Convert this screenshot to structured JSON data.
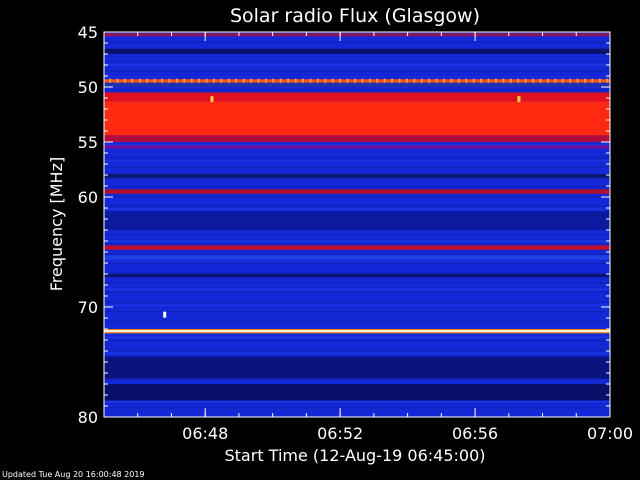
{
  "chart_data": {
    "type": "heatmap",
    "title": "Solar radio Flux (Glasgow)",
    "xlabel": "Start Time (12-Aug-19 06:45:00)",
    "ylabel": "Frequency [MHz]",
    "xlim": [
      "06:45:00",
      "07:00:00"
    ],
    "ylim": [
      45,
      80
    ],
    "y_inverted": true,
    "x_ticks": [
      "06:48",
      "06:52",
      "06:56",
      "07:00"
    ],
    "x_tick_values_min": [
      3,
      7,
      11,
      15
    ],
    "y_ticks": [
      45,
      50,
      55,
      60,
      70,
      80
    ],
    "background_color": "#1428d8",
    "colormap": [
      "#000010",
      "#1020c0",
      "#3060ff",
      "#c01030",
      "#ff3010",
      "#ffb020",
      "#ffffff"
    ],
    "bands": [
      {
        "freq_start": 45.1,
        "freq_end": 45.4,
        "color": "#8a1660"
      },
      {
        "freq_start": 46.5,
        "freq_end": 47.0,
        "color": "#0a1070"
      },
      {
        "freq_start": 49.3,
        "freq_end": 49.6,
        "color": "#ff5020"
      },
      {
        "freq_start": 49.6,
        "freq_end": 50.0,
        "color": "#2030b0"
      },
      {
        "freq_start": 50.5,
        "freq_end": 51.3,
        "color": "#e01020"
      },
      {
        "freq_start": 51.3,
        "freq_end": 54.4,
        "color": "#ff2a10"
      },
      {
        "freq_start": 54.4,
        "freq_end": 55.0,
        "color": "#b00c40"
      },
      {
        "freq_start": 55.3,
        "freq_end": 55.6,
        "color": "#7010a0"
      },
      {
        "freq_start": 57.9,
        "freq_end": 58.3,
        "color": "#0a1870"
      },
      {
        "freq_start": 59.3,
        "freq_end": 59.7,
        "color": "#b0102a"
      },
      {
        "freq_start": 61.3,
        "freq_end": 63.0,
        "color": "#0c1aa0"
      },
      {
        "freq_start": 64.4,
        "freq_end": 64.8,
        "color": "#c01030"
      },
      {
        "freq_start": 65.3,
        "freq_end": 65.7,
        "color": "#2040e0"
      },
      {
        "freq_start": 67.0,
        "freq_end": 67.3,
        "color": "#0a1470"
      },
      {
        "freq_start": 72.0,
        "freq_end": 72.1,
        "color": "#ff8010"
      },
      {
        "freq_start": 72.1,
        "freq_end": 72.3,
        "color": "#ffffd0"
      },
      {
        "freq_start": 72.3,
        "freq_end": 72.4,
        "color": "#ff8010"
      },
      {
        "freq_start": 74.5,
        "freq_end": 76.5,
        "color": "#0a1480"
      },
      {
        "freq_start": 77.0,
        "freq_end": 78.5,
        "color": "#08106a"
      }
    ],
    "bursts": [
      {
        "time_min": 1.8,
        "freq": 70.7,
        "color": "#ffffff"
      },
      {
        "time_min": 3.2,
        "freq": 51.1,
        "color": "#ffd040"
      },
      {
        "time_min": 12.3,
        "freq": 51.1,
        "color": "#ffd040"
      }
    ]
  },
  "footer": {
    "updated": "Updated Tue Aug 20 16:00:48 2019"
  }
}
